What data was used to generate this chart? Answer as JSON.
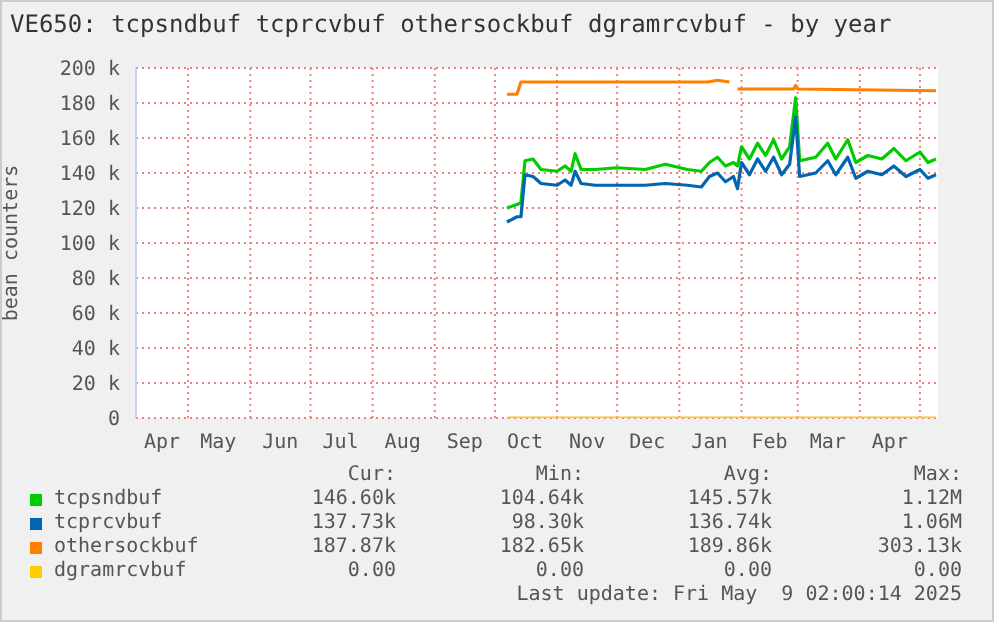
{
  "chart_data": {
    "type": "line",
    "title": "VE650: tcpsndbuf tcprcvbuf othersockbuf dgramrcvbuf - by year",
    "ylabel": "bean counters",
    "xlim": [
      "2024-04-05",
      "2025-05-10"
    ],
    "xticks": [
      {
        "value": "2024-05-01",
        "label": null
      },
      {
        "value": "2024-06-01",
        "label": null
      },
      {
        "value": "2024-07-01",
        "label": null
      },
      {
        "value": "2024-08-01",
        "label": null
      },
      {
        "value": "2024-09-01",
        "label": null
      },
      {
        "value": "2024-10-01",
        "label": null
      },
      {
        "value": "2024-11-01",
        "label": null
      },
      {
        "value": "2024-12-01",
        "label": null
      },
      {
        "value": "2025-01-01",
        "label": null
      },
      {
        "value": "2025-02-01",
        "label": null
      },
      {
        "value": "2025-03-01",
        "label": null
      },
      {
        "value": "2025-04-01",
        "label": null
      },
      {
        "value": "2025-05-01",
        "label": null
      },
      {
        "value": "2024-04-18",
        "label": "Apr"
      },
      {
        "value": "2024-05-16",
        "label": "May"
      },
      {
        "value": "2024-06-16",
        "label": "Jun"
      },
      {
        "value": "2024-07-16",
        "label": "Jul"
      },
      {
        "value": "2024-08-16",
        "label": "Aug"
      },
      {
        "value": "2024-09-16",
        "label": "Sep"
      },
      {
        "value": "2024-10-16",
        "label": "Oct"
      },
      {
        "value": "2024-11-16",
        "label": "Nov"
      },
      {
        "value": "2024-12-16",
        "label": "Dec"
      },
      {
        "value": "2025-01-16",
        "label": "Jan"
      },
      {
        "value": "2025-02-15",
        "label": "Feb"
      },
      {
        "value": "2025-03-16",
        "label": "Mar"
      },
      {
        "value": "2025-04-16",
        "label": "Apr"
      }
    ],
    "ylim": [
      0,
      200000
    ],
    "yticks": [
      {
        "value": 0,
        "label": "0"
      },
      {
        "value": 20000,
        "label": "20 k"
      },
      {
        "value": 40000,
        "label": "40 k"
      },
      {
        "value": 60000,
        "label": "60 k"
      },
      {
        "value": 80000,
        "label": "80 k"
      },
      {
        "value": 100000,
        "label": "100 k"
      },
      {
        "value": 120000,
        "label": "120 k"
      },
      {
        "value": 140000,
        "label": "140 k"
      },
      {
        "value": 160000,
        "label": "160 k"
      },
      {
        "value": 180000,
        "label": "180 k"
      },
      {
        "value": 200000,
        "label": "200 k"
      }
    ],
    "grid": true,
    "legend": "bottom",
    "marker": "none",
    "line_style": "solid",
    "series": [
      {
        "name": "tcpsndbuf",
        "color": "#00cc00",
        "x": [
          "2024-10-07",
          "2024-10-12",
          "2024-10-14",
          "2024-10-16",
          "2024-10-20",
          "2024-10-24",
          "2024-11-01",
          "2024-11-05",
          "2024-11-08",
          "2024-11-10",
          "2024-11-13",
          "2024-11-20",
          "2024-12-01",
          "2024-12-15",
          "2024-12-25",
          "2025-01-05",
          "2025-01-12",
          "2025-01-16",
          "2025-01-20",
          "2025-01-24",
          "2025-01-28",
          "2025-01-30",
          "2025-02-01",
          "2025-02-05",
          "2025-02-09",
          "2025-02-13",
          "2025-02-17",
          "2025-02-21",
          "2025-02-25",
          "2025-02-28",
          "2025-03-02",
          "2025-03-10",
          "2025-03-16",
          "2025-03-20",
          "2025-03-26",
          "2025-03-30",
          "2025-04-05",
          "2025-04-12",
          "2025-04-18",
          "2025-04-24",
          "2025-05-01",
          "2025-05-05",
          "2025-05-09"
        ],
        "values": [
          120000,
          122000,
          123000,
          147000,
          148000,
          142000,
          141000,
          144000,
          141000,
          151000,
          142000,
          142000,
          143000,
          142000,
          145000,
          142000,
          141000,
          146000,
          149000,
          144000,
          146000,
          144000,
          155000,
          148000,
          157000,
          150000,
          159000,
          148000,
          155000,
          183000,
          147000,
          149000,
          157000,
          148000,
          159000,
          146000,
          150000,
          148000,
          154000,
          147000,
          152000,
          146000,
          148000
        ]
      },
      {
        "name": "tcprcvbuf",
        "color": "#0066b3",
        "x": [
          "2024-10-07",
          "2024-10-12",
          "2024-10-14",
          "2024-10-16",
          "2024-10-20",
          "2024-10-24",
          "2024-11-01",
          "2024-11-05",
          "2024-11-08",
          "2024-11-10",
          "2024-11-13",
          "2024-11-20",
          "2024-12-01",
          "2024-12-15",
          "2024-12-25",
          "2025-01-05",
          "2025-01-12",
          "2025-01-16",
          "2025-01-20",
          "2025-01-24",
          "2025-01-28",
          "2025-01-30",
          "2025-02-01",
          "2025-02-05",
          "2025-02-09",
          "2025-02-13",
          "2025-02-17",
          "2025-02-21",
          "2025-02-25",
          "2025-02-28",
          "2025-03-02",
          "2025-03-10",
          "2025-03-16",
          "2025-03-20",
          "2025-03-26",
          "2025-03-30",
          "2025-04-05",
          "2025-04-12",
          "2025-04-18",
          "2025-04-24",
          "2025-05-01",
          "2025-05-05",
          "2025-05-09"
        ],
        "values": [
          112000,
          115000,
          115000,
          139000,
          138000,
          134000,
          133000,
          136000,
          133000,
          141000,
          134000,
          133000,
          133000,
          133000,
          134000,
          133000,
          132000,
          138000,
          140000,
          135000,
          138000,
          131000,
          146000,
          139000,
          148000,
          141000,
          149000,
          139000,
          145000,
          172000,
          138000,
          140000,
          147000,
          139000,
          149000,
          137000,
          141000,
          139000,
          144000,
          138000,
          142000,
          137000,
          139000
        ]
      },
      {
        "name": "othersockbuf",
        "color": "#ff8000",
        "x": [
          "2024-10-07",
          "2024-10-12",
          "2024-10-14",
          "2025-01-15",
          "2025-01-20",
          "2025-01-26",
          "2025-01-28",
          "2025-01-30",
          "2025-02-27",
          "2025-02-28",
          "2025-03-01",
          "2025-05-09"
        ],
        "values": [
          185000,
          185000,
          192000,
          192000,
          193000,
          192000,
          null,
          188000,
          188000,
          190000,
          188000,
          187000
        ]
      },
      {
        "name": "dgramrcvbuf",
        "color": "#ffcc00",
        "x": [
          "2024-10-07",
          "2025-05-09"
        ],
        "values": [
          0,
          0
        ]
      }
    ],
    "annotations": [
      "Cur:",
      "Min:",
      "Avg:",
      "Max:",
      "146.60k",
      "104.64k",
      "145.57k",
      "1.12M",
      "137.73k",
      "98.30k",
      "136.74k",
      "1.06M",
      "187.87k",
      "182.65k",
      "189.86k",
      "303.13k",
      "0.00",
      "0.00",
      "0.00",
      "0.00",
      "Last update: Fri May  9 02:00:14 2025"
    ]
  }
}
